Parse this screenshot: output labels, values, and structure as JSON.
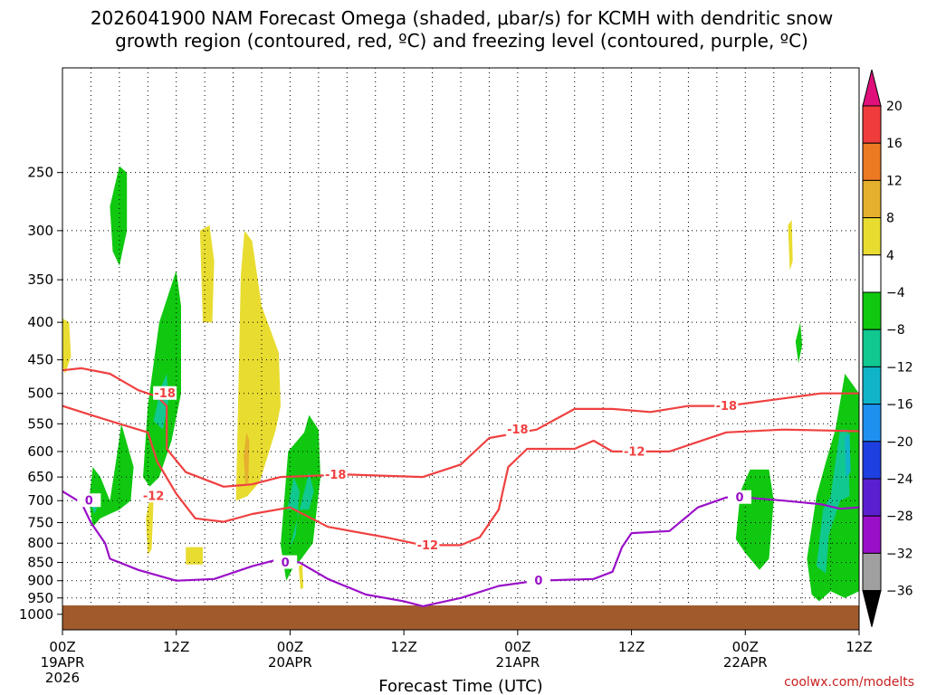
{
  "chart_data": {
    "type": "time-height contour",
    "title_line1": "2026041900 NAM Forecast Omega (shaded, μbar/s) for KCMH with dendritic snow",
    "title_line2": "growth region (contoured, red, ºC) and freezing level (contoured, purple, ºC)",
    "xlabel": "Forecast Time (UTC)",
    "credit": "coolwx.com/modelts",
    "x_ticks": [
      {
        "h": 0,
        "label": "00Z",
        "sub1": "19APR",
        "sub2": "2026"
      },
      {
        "h": 12,
        "label": "12Z",
        "sub1": "",
        "sub2": ""
      },
      {
        "h": 24,
        "label": "00Z",
        "sub1": "20APR",
        "sub2": ""
      },
      {
        "h": 36,
        "label": "12Z",
        "sub1": "",
        "sub2": ""
      },
      {
        "h": 48,
        "label": "00Z",
        "sub1": "21APR",
        "sub2": ""
      },
      {
        "h": 60,
        "label": "12Z",
        "sub1": "",
        "sub2": ""
      },
      {
        "h": 72,
        "label": "00Z",
        "sub1": "22APR",
        "sub2": ""
      },
      {
        "h": 84,
        "label": "12Z",
        "sub1": "",
        "sub2": ""
      }
    ],
    "x_range_hours": [
      0,
      84
    ],
    "y_axis": "pressure (mb), log scale, inverted",
    "y_range_mb": [
      1050,
      180
    ],
    "y_ticks": [
      "250",
      "300",
      "350",
      "400",
      "450",
      "500",
      "550",
      "600",
      "650",
      "700",
      "750",
      "800",
      "850",
      "900",
      "950",
      "1000"
    ],
    "colorbar": {
      "labels": [
        "20",
        "16",
        "12",
        "8",
        "4",
        "−4",
        "−8",
        "−12",
        "−16",
        "−20",
        "−24",
        "−28",
        "−32",
        "−36"
      ],
      "colors": [
        "#f03c3c",
        "#ec7a22",
        "#e4b02e",
        "#e8dc30",
        "#ffffff",
        "#10c810",
        "#10c890",
        "#10b4c8",
        "#1e90f0",
        "#1e40e0",
        "#5a20d0",
        "#9a10c8",
        "#a0a0a0"
      ],
      "top_arrow_color": "#e0107a",
      "bottom_arrow_color": "#000000"
    },
    "contour_labels": {
      "dgz_cold": "-18",
      "dgz_warm": "-12",
      "freezing": "0"
    },
    "freezing_level": [
      {
        "h": 0,
        "p": 680
      },
      {
        "h": 2,
        "p": 705
      },
      {
        "h": 3,
        "p": 750
      },
      {
        "h": 4.5,
        "p": 800
      },
      {
        "h": 5,
        "p": 840
      },
      {
        "h": 8,
        "p": 870
      },
      {
        "h": 12,
        "p": 900
      },
      {
        "h": 16,
        "p": 895
      },
      {
        "h": 20,
        "p": 860
      },
      {
        "h": 23,
        "p": 840
      },
      {
        "h": 25,
        "p": 850
      },
      {
        "h": 28,
        "p": 895
      },
      {
        "h": 32,
        "p": 940
      },
      {
        "h": 36,
        "p": 960
      },
      {
        "h": 38,
        "p": 975
      },
      {
        "h": 42,
        "p": 950
      },
      {
        "h": 46,
        "p": 915
      },
      {
        "h": 50,
        "p": 900
      },
      {
        "h": 56,
        "p": 895
      },
      {
        "h": 58,
        "p": 875
      },
      {
        "h": 59,
        "p": 810
      },
      {
        "h": 60,
        "p": 775
      },
      {
        "h": 64,
        "p": 770
      },
      {
        "h": 67,
        "p": 715
      },
      {
        "h": 70,
        "p": 693
      },
      {
        "h": 72,
        "p": 693
      },
      {
        "h": 76,
        "p": 700
      },
      {
        "h": 80,
        "p": 708
      },
      {
        "h": 82,
        "p": 718
      },
      {
        "h": 84,
        "p": 715
      }
    ],
    "dgz_minus18": [
      {
        "h": 0,
        "p": 465
      },
      {
        "h": 2,
        "p": 462
      },
      {
        "h": 5,
        "p": 470
      },
      {
        "h": 8,
        "p": 495
      },
      {
        "h": 10,
        "p": 505
      },
      {
        "h": 11,
        "p": 520
      },
      {
        "h": 11,
        "p": 595
      },
      {
        "h": 13,
        "p": 640
      },
      {
        "h": 17,
        "p": 670
      },
      {
        "h": 20,
        "p": 665
      },
      {
        "h": 23,
        "p": 650
      },
      {
        "h": 30,
        "p": 645
      },
      {
        "h": 38,
        "p": 650
      },
      {
        "h": 42,
        "p": 625
      },
      {
        "h": 45,
        "p": 575
      },
      {
        "h": 50,
        "p": 560
      },
      {
        "h": 54,
        "p": 525
      },
      {
        "h": 58,
        "p": 525
      },
      {
        "h": 62,
        "p": 530
      },
      {
        "h": 66,
        "p": 520
      },
      {
        "h": 70,
        "p": 520
      },
      {
        "h": 76,
        "p": 508
      },
      {
        "h": 80,
        "p": 500
      },
      {
        "h": 84,
        "p": 500
      }
    ],
    "dgz_minus12": [
      {
        "h": 0,
        "p": 520
      },
      {
        "h": 3,
        "p": 535
      },
      {
        "h": 6,
        "p": 550
      },
      {
        "h": 9,
        "p": 565
      },
      {
        "h": 10,
        "p": 620
      },
      {
        "h": 12,
        "p": 685
      },
      {
        "h": 14,
        "p": 740
      },
      {
        "h": 17,
        "p": 748
      },
      {
        "h": 20,
        "p": 730
      },
      {
        "h": 24,
        "p": 715
      },
      {
        "h": 28,
        "p": 760
      },
      {
        "h": 34,
        "p": 785
      },
      {
        "h": 38,
        "p": 805
      },
      {
        "h": 42,
        "p": 805
      },
      {
        "h": 44,
        "p": 785
      },
      {
        "h": 46,
        "p": 720
      },
      {
        "h": 47,
        "p": 630
      },
      {
        "h": 49,
        "p": 595
      },
      {
        "h": 54,
        "p": 595
      },
      {
        "h": 56,
        "p": 580
      },
      {
        "h": 58,
        "p": 600
      },
      {
        "h": 64,
        "p": 600
      },
      {
        "h": 70,
        "p": 565
      },
      {
        "h": 76,
        "p": 560
      },
      {
        "h": 84,
        "p": 563
      }
    ],
    "omega_regions": [
      {
        "id": "green-upper-early",
        "value": -6,
        "pts": [
          [
            5.0,
            278
          ],
          [
            6.0,
            245
          ],
          [
            6.8,
            250
          ],
          [
            6.8,
            300
          ],
          [
            6.0,
            335
          ],
          [
            5.3,
            320
          ]
        ]
      },
      {
        "id": "green-tower-12z",
        "value": -6,
        "pts": [
          [
            8.5,
            650
          ],
          [
            9.0,
            520
          ],
          [
            10.2,
            400
          ],
          [
            12.0,
            340
          ],
          [
            12.5,
            380
          ],
          [
            12.5,
            500
          ],
          [
            11.5,
            580
          ],
          [
            10.2,
            650
          ],
          [
            9.2,
            670
          ]
        ]
      },
      {
        "id": "teal-tower-12z",
        "value": -10,
        "pts": [
          [
            9.6,
            545
          ],
          [
            10.4,
            490
          ],
          [
            11.0,
            470
          ],
          [
            11.2,
            510
          ],
          [
            10.6,
            560
          ]
        ]
      },
      {
        "id": "green-early-low",
        "value": -6,
        "pts": [
          [
            2.8,
            700
          ],
          [
            3.2,
            630
          ],
          [
            4.0,
            650
          ],
          [
            5.0,
            700
          ],
          [
            5.8,
            600
          ],
          [
            6.2,
            550
          ],
          [
            7.5,
            630
          ],
          [
            7.2,
            700
          ],
          [
            6.0,
            720
          ],
          [
            4.0,
            740
          ],
          [
            3.2,
            760
          ]
        ]
      },
      {
        "id": "teal-early-low",
        "value": -10,
        "pts": [
          [
            3.1,
            715
          ],
          [
            3.4,
            690
          ],
          [
            3.8,
            705
          ],
          [
            3.4,
            730
          ]
        ]
      },
      {
        "id": "green-20apr",
        "value": -6,
        "pts": [
          [
            23.0,
            805
          ],
          [
            23.8,
            600
          ],
          [
            25.5,
            565
          ],
          [
            26.0,
            535
          ],
          [
            27.0,
            560
          ],
          [
            27.2,
            650
          ],
          [
            26.4,
            800
          ],
          [
            25.2,
            840
          ],
          [
            24.2,
            870
          ],
          [
            23.6,
            900
          ]
        ]
      },
      {
        "id": "teal-20apr",
        "value": -10,
        "pts": [
          [
            23.7,
            720
          ],
          [
            24.4,
            650
          ],
          [
            25.0,
            680
          ],
          [
            24.6,
            780
          ],
          [
            24.0,
            810
          ],
          [
            26.0,
            640
          ],
          [
            26.5,
            680
          ],
          [
            26.0,
            720
          ]
        ]
      },
      {
        "id": "green-22apr-right",
        "value": -6,
        "pts": [
          [
            78.5,
            840
          ],
          [
            79.5,
            690
          ],
          [
            80.5,
            620
          ],
          [
            81.5,
            560
          ],
          [
            82.5,
            470
          ],
          [
            84.0,
            500
          ],
          [
            84.0,
            930
          ],
          [
            82.5,
            950
          ],
          [
            81.0,
            930
          ],
          [
            79.8,
            960
          ],
          [
            79.0,
            940
          ]
        ]
      },
      {
        "id": "teal-22apr-right",
        "value": -10,
        "pts": [
          [
            79.5,
            860
          ],
          [
            80.2,
            720
          ],
          [
            81.0,
            690
          ],
          [
            81.5,
            620
          ],
          [
            82.0,
            560
          ],
          [
            82.8,
            560
          ],
          [
            83.0,
            690
          ],
          [
            82.0,
            700
          ],
          [
            80.8,
            780
          ],
          [
            80.5,
            880
          ]
        ]
      },
      {
        "id": "blue-22apr-core",
        "value": -14,
        "pts": [
          [
            82.5,
            575
          ],
          [
            83.0,
            565
          ],
          [
            83.1,
            640
          ],
          [
            82.6,
            650
          ]
        ]
      },
      {
        "id": "green-22apr-left",
        "value": -6,
        "pts": [
          [
            71.5,
            680
          ],
          [
            72.5,
            635
          ],
          [
            74.5,
            635
          ],
          [
            75.0,
            700
          ],
          [
            74.5,
            840
          ],
          [
            73.5,
            870
          ],
          [
            72.0,
            825
          ],
          [
            71.0,
            790
          ]
        ]
      },
      {
        "id": "green-22apr-bits",
        "value": -6,
        "pts": [
          [
            77.3,
            425
          ],
          [
            77.8,
            400
          ],
          [
            78.0,
            430
          ],
          [
            77.6,
            455
          ]
        ]
      },
      {
        "id": "yellow-12z-south",
        "value": 6,
        "pts": [
          [
            8.8,
            740
          ],
          [
            9.3,
            685
          ],
          [
            9.6,
            700
          ],
          [
            9.4,
            815
          ],
          [
            9.0,
            830
          ]
        ]
      },
      {
        "id": "yellow-18z-tall",
        "value": 6,
        "pts": [
          [
            18.3,
            700
          ],
          [
            18.8,
            345
          ],
          [
            19.2,
            300
          ],
          [
            20.0,
            310
          ],
          [
            21.0,
            380
          ],
          [
            22.8,
            440
          ],
          [
            23.0,
            520
          ],
          [
            22.5,
            560
          ],
          [
            20.8,
            660
          ],
          [
            19.5,
            690
          ]
        ]
      },
      {
        "id": "orange-18z-core",
        "value": 10,
        "pts": [
          [
            19.1,
            610
          ],
          [
            19.4,
            565
          ],
          [
            19.7,
            580
          ],
          [
            19.6,
            660
          ],
          [
            19.3,
            665
          ]
        ]
      },
      {
        "id": "yellow-15z",
        "value": 6,
        "pts": [
          [
            14.5,
            300
          ],
          [
            15.5,
            295
          ],
          [
            16.0,
            330
          ],
          [
            15.8,
            400
          ],
          [
            14.8,
            400
          ]
        ]
      },
      {
        "id": "yellow-left-edge",
        "value": 6,
        "pts": [
          [
            0.0,
            395
          ],
          [
            0.7,
            400
          ],
          [
            0.9,
            445
          ],
          [
            0.3,
            470
          ],
          [
            0.0,
            460
          ]
        ]
      },
      {
        "id": "yellow-small-850",
        "value": 6,
        "pts": [
          [
            13.0,
            810
          ],
          [
            14.8,
            810
          ],
          [
            14.8,
            855
          ],
          [
            13.0,
            855
          ]
        ]
      },
      {
        "id": "yellow-22apr-top",
        "value": 6,
        "pts": [
          [
            76.5,
            295
          ],
          [
            76.9,
            290
          ],
          [
            77.0,
            330
          ],
          [
            76.7,
            340
          ]
        ]
      },
      {
        "id": "yellow-20apr-low",
        "value": 6,
        "pts": [
          [
            24.9,
            860
          ],
          [
            25.3,
            855
          ],
          [
            25.4,
            920
          ],
          [
            25.1,
            925
          ]
        ]
      }
    ]
  }
}
